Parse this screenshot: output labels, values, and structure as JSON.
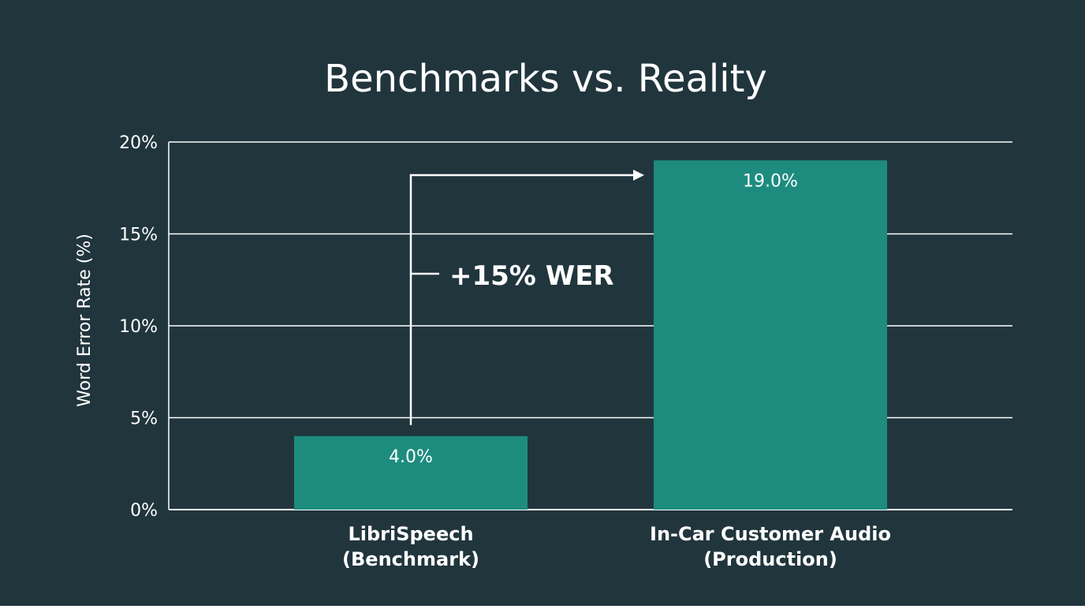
{
  "chart_data": {
    "type": "bar",
    "title": "Benchmarks vs. Reality",
    "ylabel": "Word Error Rate (%)",
    "xlabel": "",
    "ylim": [
      0,
      20
    ],
    "yticks": [
      0,
      5,
      10,
      15,
      20
    ],
    "ytick_labels": [
      "0%",
      "5%",
      "10%",
      "15%",
      "20%"
    ],
    "categories": [
      [
        "LibriSpeech",
        "(Benchmark)"
      ],
      [
        "In-Car Customer Audio",
        "(Production)"
      ]
    ],
    "values": [
      4.0,
      19.0
    ],
    "value_labels": [
      "4.0%",
      "19.0%"
    ],
    "grid": true,
    "annotation": {
      "text": "+15% WER",
      "from_category": 0,
      "to_category": 1
    }
  },
  "colors": {
    "background": "#21353d",
    "bar": "#1d8c7f",
    "grid": "#ffffff",
    "text": "#ffffff"
  }
}
